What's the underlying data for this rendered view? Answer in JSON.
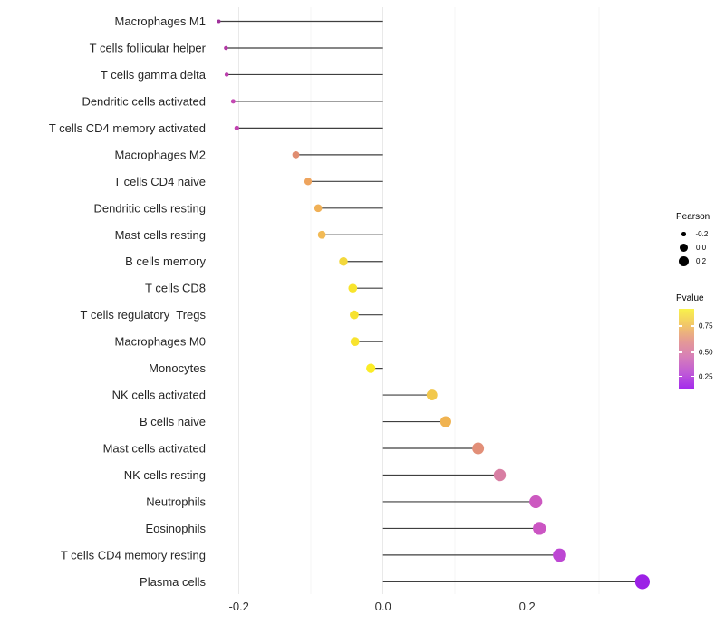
{
  "chart_data": {
    "type": "scatter",
    "subtype": "lollipop",
    "title": "",
    "xlabel": "",
    "ylabel": "",
    "xlim": [
      -0.24,
      0.4
    ],
    "x_major_ticks": [
      -0.2,
      0.0,
      0.2
    ],
    "x_tick_labels": [
      "-0.2",
      "0.0",
      "0.2"
    ],
    "x_minor_gridlines": [
      -0.1,
      0.1,
      0.3
    ],
    "grid": "vertical-only",
    "stem_color": "#3f3f3f",
    "axis_text_color": "#262626",
    "rows": [
      {
        "label": "Macrophages M1",
        "pearson": -0.228,
        "color": "#A0319B"
      },
      {
        "label": "T cells follicular helper",
        "pearson": -0.218,
        "color": "#B23AA5"
      },
      {
        "label": "T cells gamma delta",
        "pearson": -0.217,
        "color": "#BC3FAD"
      },
      {
        "label": "Dendritic cells activated",
        "pearson": -0.208,
        "color": "#C449B3"
      },
      {
        "label": "T cells CD4 memory activated",
        "pearson": -0.203,
        "color": "#C243B1"
      },
      {
        "label": "Macrophages M2",
        "pearson": -0.121,
        "color": "#E08D71"
      },
      {
        "label": "T cells CD4 naive",
        "pearson": -0.104,
        "color": "#EEA45E"
      },
      {
        "label": "Dendritic cells resting",
        "pearson": -0.09,
        "color": "#F0B056"
      },
      {
        "label": "Mast cells resting",
        "pearson": -0.085,
        "color": "#F2BA55"
      },
      {
        "label": "B cells memory",
        "pearson": -0.055,
        "color": "#F3D83C"
      },
      {
        "label": "T cells CD8",
        "pearson": -0.042,
        "color": "#F8E42D"
      },
      {
        "label": "T cells regulatory  Tregs",
        "pearson": -0.04,
        "color": "#F7E231"
      },
      {
        "label": "Macrophages M0",
        "pearson": -0.039,
        "color": "#F8E32F"
      },
      {
        "label": "Monocytes",
        "pearson": -0.017,
        "color": "#FBEC26"
      },
      {
        "label": "NK cells activated",
        "pearson": 0.068,
        "color": "#F2C84C"
      },
      {
        "label": "B cells naive",
        "pearson": 0.087,
        "color": "#F0B351"
      },
      {
        "label": "Mast cells activated",
        "pearson": 0.132,
        "color": "#E28F78"
      },
      {
        "label": "NK cells resting",
        "pearson": 0.162,
        "color": "#D87EA3"
      },
      {
        "label": "Neutrophils",
        "pearson": 0.212,
        "color": "#CC59C0"
      },
      {
        "label": "Eosinophils",
        "pearson": 0.217,
        "color": "#CB55C3"
      },
      {
        "label": "T cells CD4 memory resting",
        "pearson": 0.245,
        "color": "#BD47D3"
      },
      {
        "label": "Plasma cells",
        "pearson": 0.36,
        "color": "#9C21E6"
      }
    ],
    "legend_position": "right"
  },
  "legend": {
    "pearson": {
      "title": "Pearson",
      "items": [
        {
          "label": "-0.2"
        },
        {
          "label": "0.0"
        },
        {
          "label": "0.2"
        }
      ]
    },
    "pvalue": {
      "title": "Pvalue",
      "ticks": [
        "0.75",
        "0.50",
        "0.25"
      ],
      "tick_offsets_pct": [
        22,
        55,
        85
      ],
      "gradient": [
        "#F9F24B",
        "#F2C768",
        "#E59B94",
        "#D77FB8",
        "#C05BD6",
        "#A42BEC"
      ]
    }
  }
}
